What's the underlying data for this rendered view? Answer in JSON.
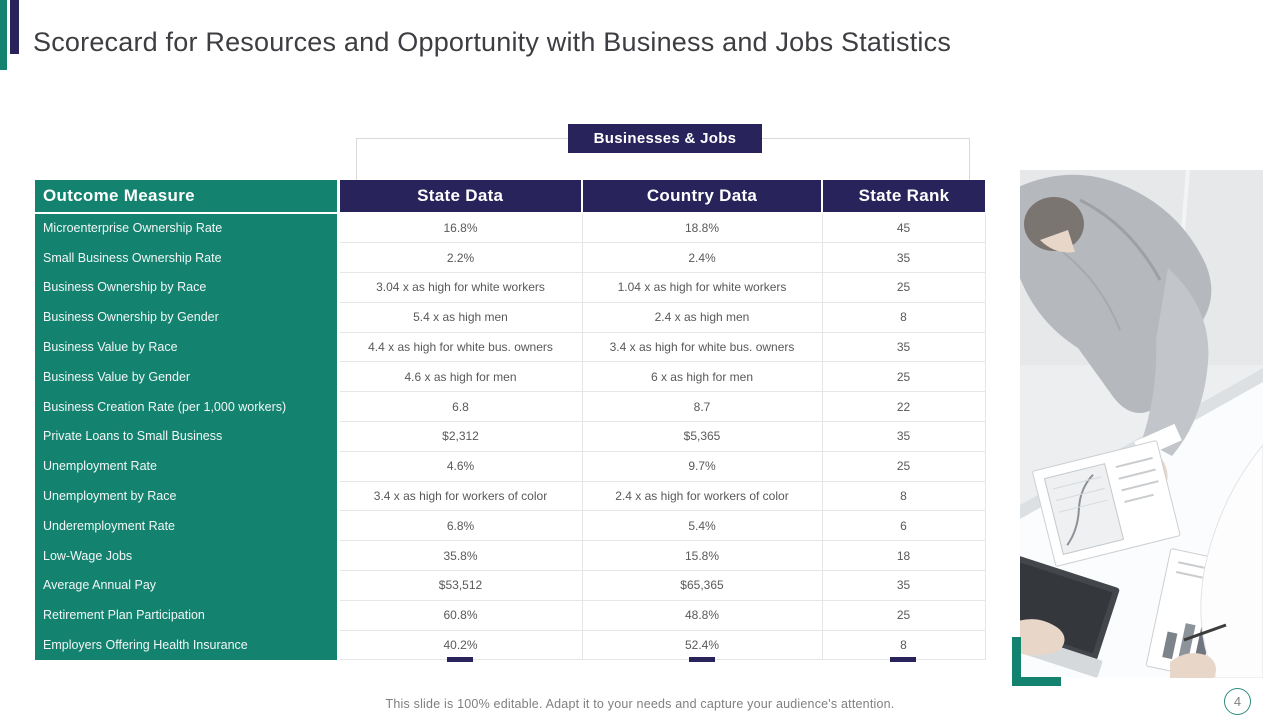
{
  "slide": {
    "title": "Scorecard for Resources and Opportunity with Business and Jobs Statistics",
    "footer": "This slide is 100% editable. Adapt it to your needs and capture your audience's attention.",
    "page_number": "4"
  },
  "badge": {
    "label": "Businesses & Jobs"
  },
  "table": {
    "headers": {
      "outcome": "Outcome Measure",
      "state": "State Data",
      "country": "Country Data",
      "rank": "State Rank"
    },
    "rows": [
      {
        "label": "Microenterprise Ownership Rate",
        "state": "16.8%",
        "country": "18.8%",
        "rank": "45"
      },
      {
        "label": "Small Business Ownership Rate",
        "state": "2.2%",
        "country": "2.4%",
        "rank": "35"
      },
      {
        "label": "Business Ownership by Race",
        "state": "3.04 x as high for white workers",
        "country": "1.04 x as high for white workers",
        "rank": "25"
      },
      {
        "label": "Business Ownership by Gender",
        "state": "5.4 x as high men",
        "country": "2.4 x as high men",
        "rank": "8"
      },
      {
        "label": "Business Value by Race",
        "state": "4.4 x as high for white bus. owners",
        "country": "3.4 x as high for white bus. owners",
        "rank": "35"
      },
      {
        "label": "Business Value by Gender",
        "state": "4.6 x as high for men",
        "country": "6 x as high for men",
        "rank": "25"
      },
      {
        "label": "Business Creation Rate (per 1,000 workers)",
        "state": "6.8",
        "country": "8.7",
        "rank": "22"
      },
      {
        "label": "Private Loans to Small Business",
        "state": "$2,312",
        "country": "$5,365",
        "rank": "35"
      },
      {
        "label": "Unemployment Rate",
        "state": "4.6%",
        "country": "9.7%",
        "rank": "25"
      },
      {
        "label": "Unemployment by Race",
        "state": "3.4 x as high for workers of color",
        "country": "2.4 x as high for workers of color",
        "rank": "8"
      },
      {
        "label": "Underemployment Rate",
        "state": "6.8%",
        "country": "5.4%",
        "rank": "6"
      },
      {
        "label": "Low-Wage Jobs",
        "state": "35.8%",
        "country": "15.8%",
        "rank": "18"
      },
      {
        "label": "Average Annual Pay",
        "state": "$53,512",
        "country": "$65,365",
        "rank": "35"
      },
      {
        "label": "Retirement Plan Participation",
        "state": "60.8%",
        "country": "48.8%",
        "rank": "25"
      },
      {
        "label": "Employers Offering Health Insurance",
        "state": "40.2%",
        "country": "52.4%",
        "rank": "8"
      }
    ]
  },
  "colors": {
    "teal": "#13826F",
    "navy": "#29235C",
    "value_text": "#595959",
    "footer_text": "#7f7f7f"
  }
}
